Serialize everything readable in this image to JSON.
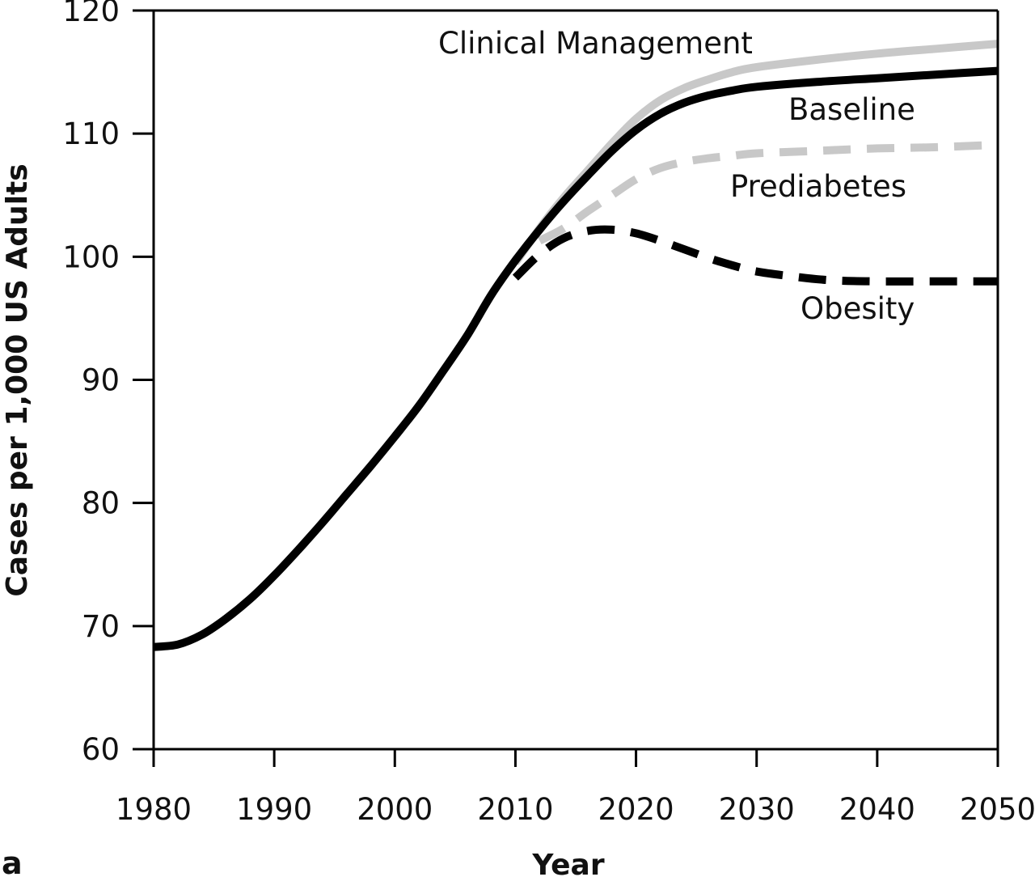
{
  "chart_data": {
    "type": "line",
    "xlabel": "Year",
    "ylabel": "Cases per 1,000 US Adults",
    "panel_label": "a",
    "xlim": [
      1980,
      2050
    ],
    "ylim": [
      60,
      120
    ],
    "xticks": [
      1980,
      1990,
      2000,
      2010,
      2020,
      2030,
      2040,
      2050
    ],
    "yticks": [
      60,
      70,
      80,
      90,
      100,
      110,
      120
    ],
    "grid": false,
    "series": [
      {
        "name": "Clinical Management",
        "color": "#c8c8c8",
        "dash": "solid",
        "x": [
          2010,
          2012,
          2014,
          2016,
          2018,
          2020,
          2022,
          2024,
          2026,
          2028,
          2030,
          2035,
          2040,
          2045,
          2050
        ],
        "y": [
          99.5,
          102.3,
          104.8,
          107.0,
          109.2,
          111.2,
          112.7,
          113.7,
          114.4,
          115.0,
          115.4,
          116.0,
          116.5,
          116.9,
          117.3
        ]
      },
      {
        "name": "Baseline",
        "color": "#000000",
        "dash": "solid",
        "x": [
          1980,
          1982,
          1984,
          1986,
          1988,
          1990,
          1992,
          1994,
          1996,
          1998,
          2000,
          2002,
          2004,
          2006,
          2008,
          2010,
          2012,
          2014,
          2016,
          2018,
          2020,
          2022,
          2024,
          2026,
          2028,
          2030,
          2035,
          2040,
          2045,
          2050
        ],
        "y": [
          68.3,
          68.5,
          69.3,
          70.6,
          72.2,
          74.1,
          76.2,
          78.4,
          80.7,
          83.0,
          85.4,
          87.9,
          90.7,
          93.6,
          96.9,
          99.7,
          102.2,
          104.5,
          106.6,
          108.6,
          110.3,
          111.6,
          112.5,
          113.1,
          113.5,
          113.8,
          114.2,
          114.5,
          114.8,
          115.1
        ]
      },
      {
        "name": "Prediabetes",
        "color": "#c8c8c8",
        "dash": "dashed",
        "x": [
          2012,
          2014,
          2016,
          2018,
          2020,
          2022,
          2024,
          2026,
          2028,
          2030,
          2035,
          2040,
          2045,
          2050
        ],
        "y": [
          101.3,
          102.3,
          103.7,
          105.0,
          106.3,
          107.2,
          107.7,
          108.0,
          108.2,
          108.4,
          108.6,
          108.8,
          108.9,
          109.1
        ]
      },
      {
        "name": "Obesity",
        "color": "#000000",
        "dash": "dashed",
        "x": [
          2010,
          2012,
          2014,
          2016,
          2018,
          2020,
          2022,
          2024,
          2026,
          2028,
          2030,
          2033,
          2036,
          2040,
          2045,
          2050
        ],
        "y": [
          98.3,
          100.2,
          101.5,
          102.1,
          102.2,
          101.9,
          101.3,
          100.6,
          99.9,
          99.3,
          98.8,
          98.4,
          98.1,
          98.0,
          98.0,
          98.0
        ]
      }
    ]
  }
}
